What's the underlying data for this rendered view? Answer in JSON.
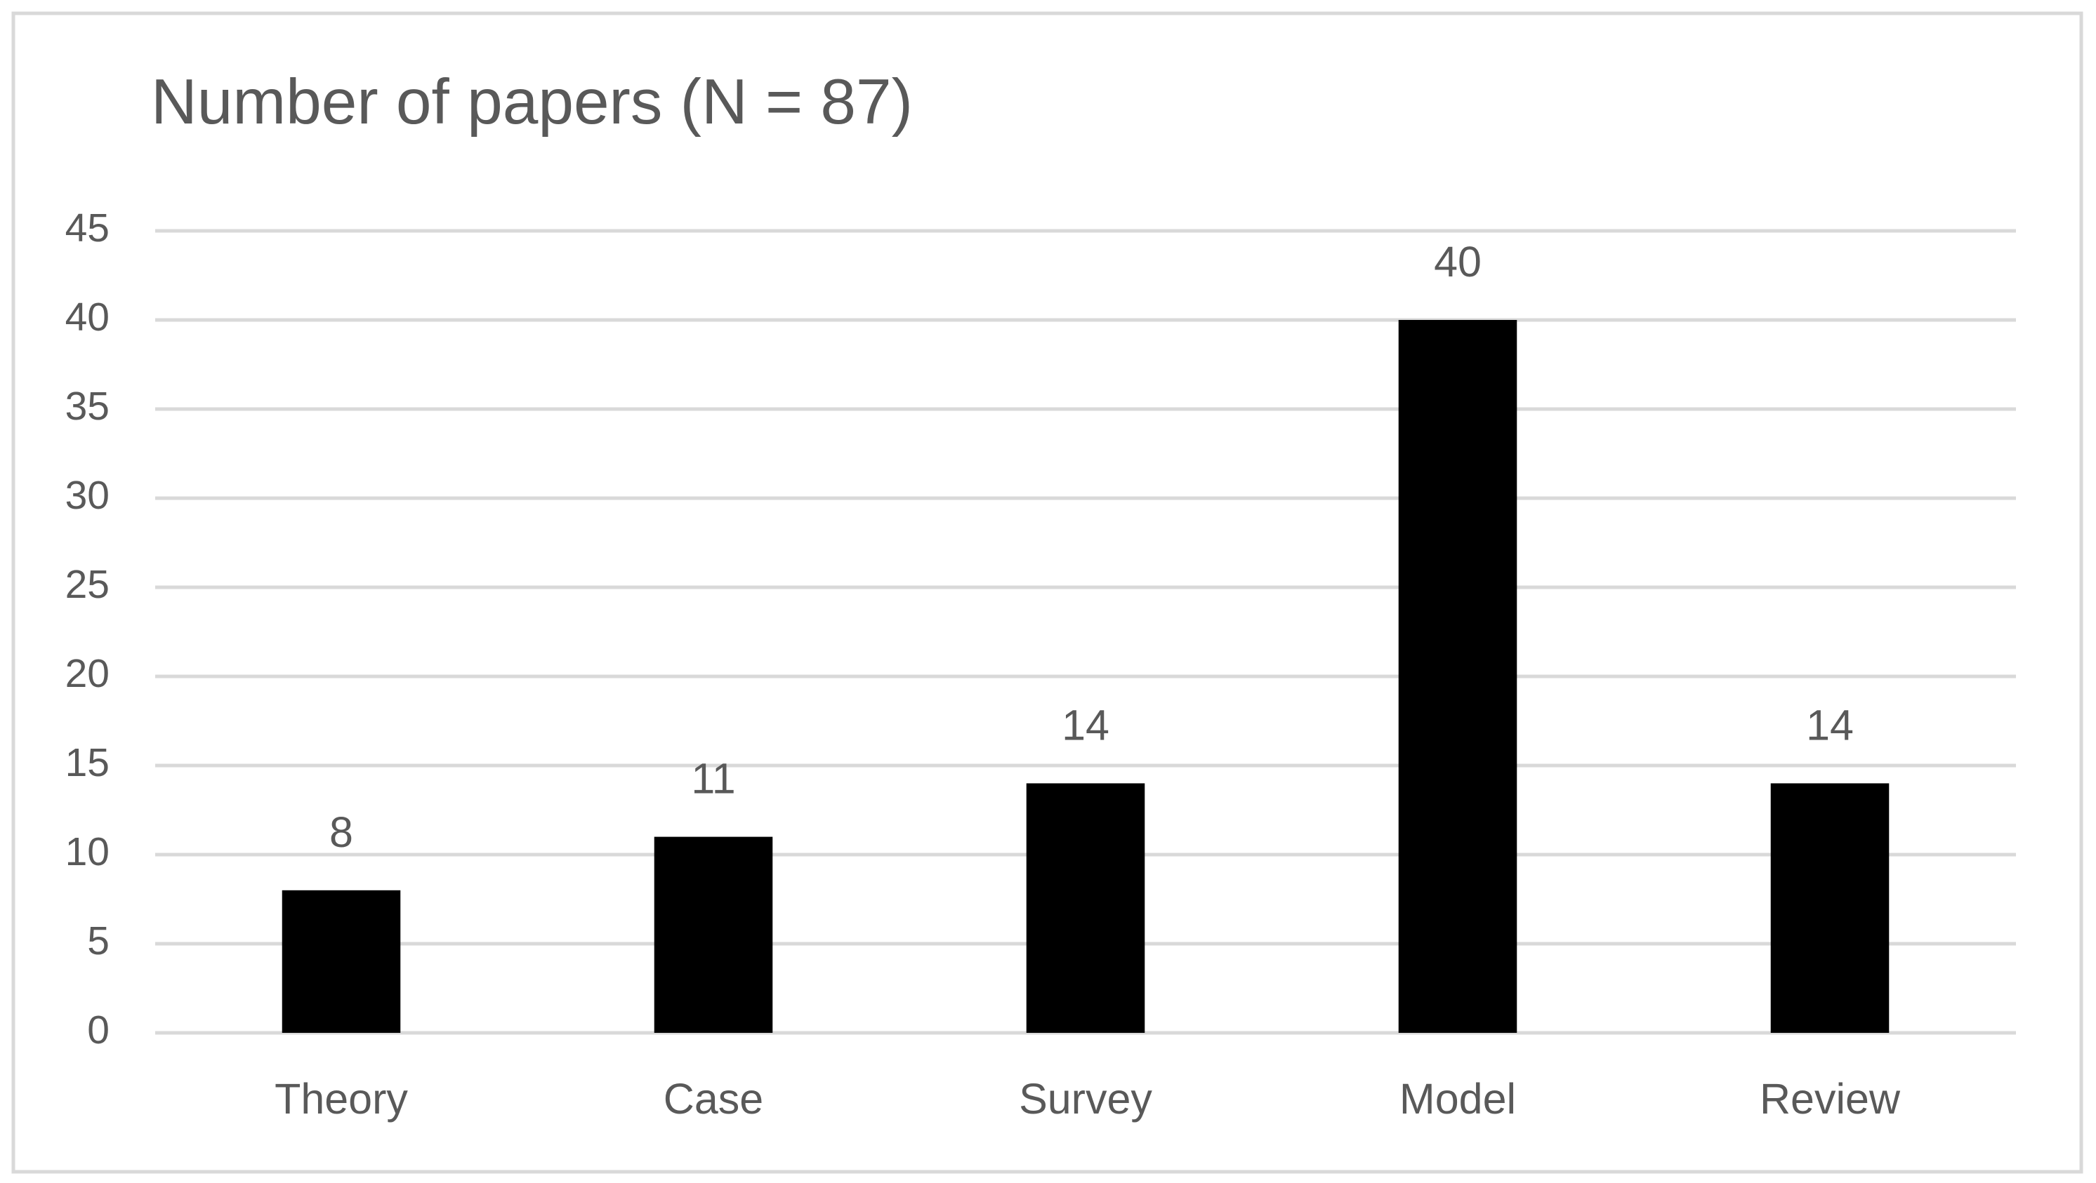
{
  "chart_data": {
    "type": "bar",
    "title": "Number of papers (N = 87)",
    "categories": [
      "Theory",
      "Case",
      "Survey",
      "Model",
      "Review"
    ],
    "values": [
      8,
      11,
      14,
      40,
      14
    ],
    "color": "#000000",
    "ylim": [
      0,
      45
    ],
    "yticks": [
      0,
      5,
      10,
      15,
      20,
      25,
      30,
      35,
      40,
      45
    ],
    "grid": true
  }
}
